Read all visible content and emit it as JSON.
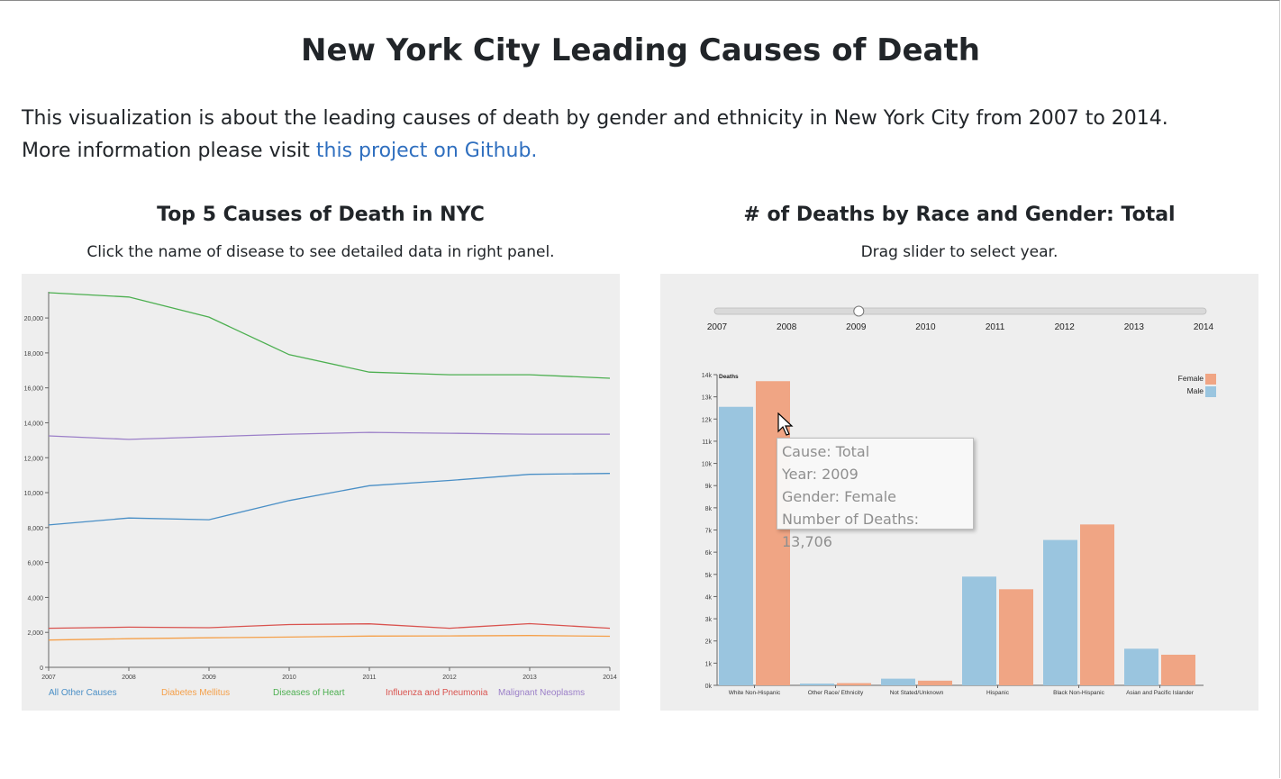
{
  "page": {
    "title": "New York City Leading Causes of Death",
    "intro_line1": "This visualization is about the leading causes of death by gender and ethnicity in New York City from 2007 to 2014.",
    "intro_prefix": "More information please visit ",
    "intro_link": "this project on Github."
  },
  "left_panel": {
    "title": "Top 5 Causes of Death in NYC",
    "subtitle": "Click the name of disease to see detailed data in right panel."
  },
  "right_panel": {
    "title": "# of Deaths by Race and Gender: Total",
    "subtitle": "Drag slider to select year."
  },
  "slider": {
    "years": [
      "2007",
      "2008",
      "2009",
      "2010",
      "2011",
      "2012",
      "2013",
      "2014"
    ],
    "selected": "2009"
  },
  "tooltip": {
    "cause": "Cause: Total",
    "year": "Year: 2009",
    "gender": "Gender: Female",
    "deaths": "Number of Deaths: 13,706"
  },
  "chart_data": [
    {
      "type": "line",
      "x": [
        2007,
        2008,
        2009,
        2010,
        2011,
        2012,
        2013,
        2014
      ],
      "xlim": [
        2007,
        2014
      ],
      "ylim": [
        0,
        21500
      ],
      "y_ticks": [
        0,
        2000,
        4000,
        6000,
        8000,
        10000,
        12000,
        14000,
        16000,
        18000,
        20000
      ],
      "y_tick_labels": [
        "0",
        "2,000",
        "4,000",
        "6,000",
        "8,000",
        "10,000",
        "12,000",
        "14,000",
        "16,000",
        "18,000",
        "20,000"
      ],
      "x_tick_labels": [
        "2007",
        "2008",
        "2009",
        "2010",
        "2011",
        "2012",
        "2013",
        "2014"
      ],
      "series": [
        {
          "name": "All Other Causes",
          "color": "#4a8fc6",
          "values": [
            8150,
            8550,
            8450,
            9550,
            10400,
            10700,
            11050,
            11100
          ]
        },
        {
          "name": "Diabetes Mellitus",
          "color": "#f5a04a",
          "values": [
            1560,
            1640,
            1690,
            1730,
            1790,
            1800,
            1820,
            1780
          ]
        },
        {
          "name": "Diseases of Heart",
          "color": "#4caf50",
          "values": [
            21450,
            21200,
            20050,
            17900,
            16900,
            16750,
            16750,
            16550
          ]
        },
        {
          "name": "Influenza and Pneumonia",
          "color": "#d9534f",
          "values": [
            2240,
            2300,
            2270,
            2450,
            2490,
            2240,
            2500,
            2240
          ]
        },
        {
          "name": "Malignant Neoplasms",
          "color": "#9b7fc8",
          "values": [
            13250,
            13050,
            13200,
            13350,
            13450,
            13400,
            13350,
            13350
          ]
        }
      ],
      "grid": false
    },
    {
      "type": "bar",
      "ylabel": "Deaths",
      "ylim": [
        0,
        14000
      ],
      "y_ticks": [
        0,
        1000,
        2000,
        3000,
        4000,
        5000,
        6000,
        7000,
        8000,
        9000,
        10000,
        11000,
        12000,
        13000,
        14000
      ],
      "y_tick_labels": [
        "0k",
        "1k",
        "2k",
        "3k",
        "4k",
        "5k",
        "6k",
        "7k",
        "8k",
        "9k",
        "10k",
        "11k",
        "12k",
        "13k",
        "14k"
      ],
      "categories": [
        "White Non-Hispanic",
        "Other Race/ Ethnicity",
        "Not Stated/Unknown",
        "Hispanic",
        "Black Non-Hispanic",
        "Asian and Pacific Islander"
      ],
      "series": [
        {
          "name": "Male",
          "color": "#9ac5df",
          "values": [
            12550,
            80,
            300,
            4900,
            6550,
            1650
          ]
        },
        {
          "name": "Female",
          "color": "#f0a584",
          "values": [
            13706,
            100,
            210,
            4330,
            7250,
            1380
          ]
        }
      ],
      "legend": "top-right",
      "grid": false
    }
  ]
}
